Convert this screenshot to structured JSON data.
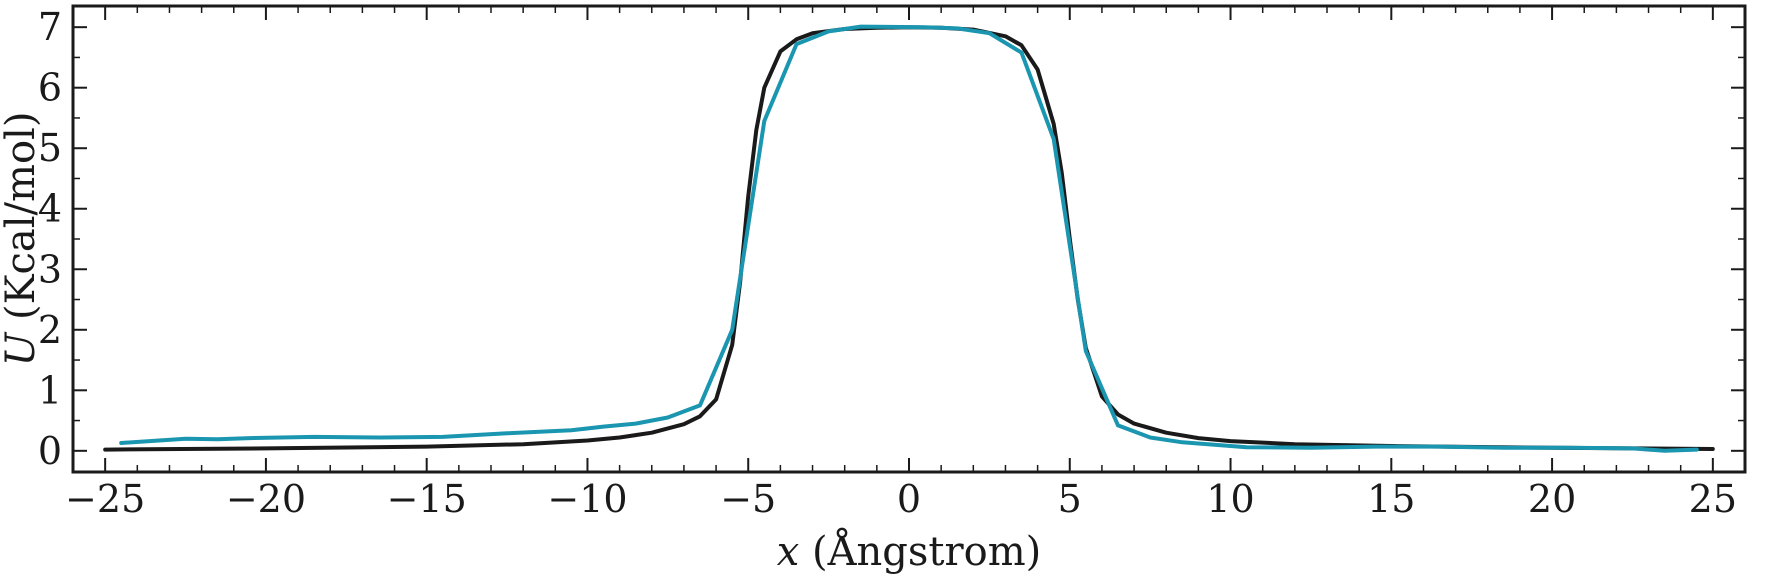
{
  "chart_data": {
    "type": "line",
    "xlabel_var": "x",
    "xlabel_unit": "(Ångstrom)",
    "ylabel_var": "U",
    "ylabel_unit": "(Kcal/mol)",
    "xlim": [
      -26,
      26
    ],
    "ylim": [
      -0.35,
      7.35
    ],
    "xticks": [
      -25,
      -20,
      -15,
      -10,
      -5,
      0,
      5,
      10,
      15,
      20,
      25
    ],
    "xtick_labels": [
      "−25",
      "−20",
      "−15",
      "−10",
      "−5",
      "0",
      "5",
      "10",
      "15",
      "20",
      "25"
    ],
    "yticks": [
      0,
      1,
      2,
      3,
      4,
      5,
      6,
      7
    ],
    "ytick_labels": [
      "0",
      "1",
      "2",
      "3",
      "4",
      "5",
      "6",
      "7"
    ],
    "grid": false,
    "series": [
      {
        "color": "#1a1a1a",
        "x": [
          -25,
          -20,
          -15,
          -12,
          -10,
          -9,
          -8,
          -7,
          -6.5,
          -6,
          -5.5,
          -5.25,
          -5,
          -4.75,
          -4.5,
          -4,
          -3.5,
          -3,
          -2,
          -1,
          0,
          1,
          2,
          3,
          3.5,
          4,
          4.5,
          4.75,
          5,
          5.25,
          5.5,
          6,
          6.5,
          7,
          8,
          9,
          10,
          12,
          15,
          20,
          25
        ],
        "y": [
          0.02,
          0.04,
          0.07,
          0.11,
          0.17,
          0.22,
          0.3,
          0.44,
          0.57,
          0.85,
          1.75,
          2.8,
          4.2,
          5.3,
          6.0,
          6.6,
          6.8,
          6.9,
          6.97,
          6.99,
          7.0,
          6.99,
          6.96,
          6.85,
          6.7,
          6.3,
          5.4,
          4.6,
          3.5,
          2.5,
          1.7,
          0.9,
          0.6,
          0.45,
          0.3,
          0.21,
          0.16,
          0.11,
          0.08,
          0.05,
          0.03
        ]
      },
      {
        "color": "#1a96b0",
        "x": [
          -24.5,
          -22.5,
          -21.5,
          -20.5,
          -18.5,
          -16.5,
          -14.5,
          -12.5,
          -10.5,
          -9.5,
          -8.5,
          -7.5,
          -6.5,
          -5.5,
          -4.5,
          -3.5,
          -2.5,
          -1.5,
          0.5,
          1.5,
          2.5,
          3.5,
          4.5,
          5.5,
          6.5,
          7.5,
          8.5,
          10.5,
          12.5,
          14.5,
          16.5,
          18.5,
          20.5,
          22.5,
          23.5,
          24.5
        ],
        "y": [
          0.13,
          0.2,
          0.19,
          0.21,
          0.23,
          0.22,
          0.23,
          0.29,
          0.34,
          0.4,
          0.45,
          0.55,
          0.75,
          2.0,
          5.45,
          6.72,
          6.93,
          7.01,
          7.0,
          6.98,
          6.9,
          6.58,
          5.15,
          1.65,
          0.42,
          0.22,
          0.14,
          0.06,
          0.05,
          0.07,
          0.07,
          0.05,
          0.05,
          0.04,
          0.0,
          0.02
        ]
      }
    ]
  }
}
